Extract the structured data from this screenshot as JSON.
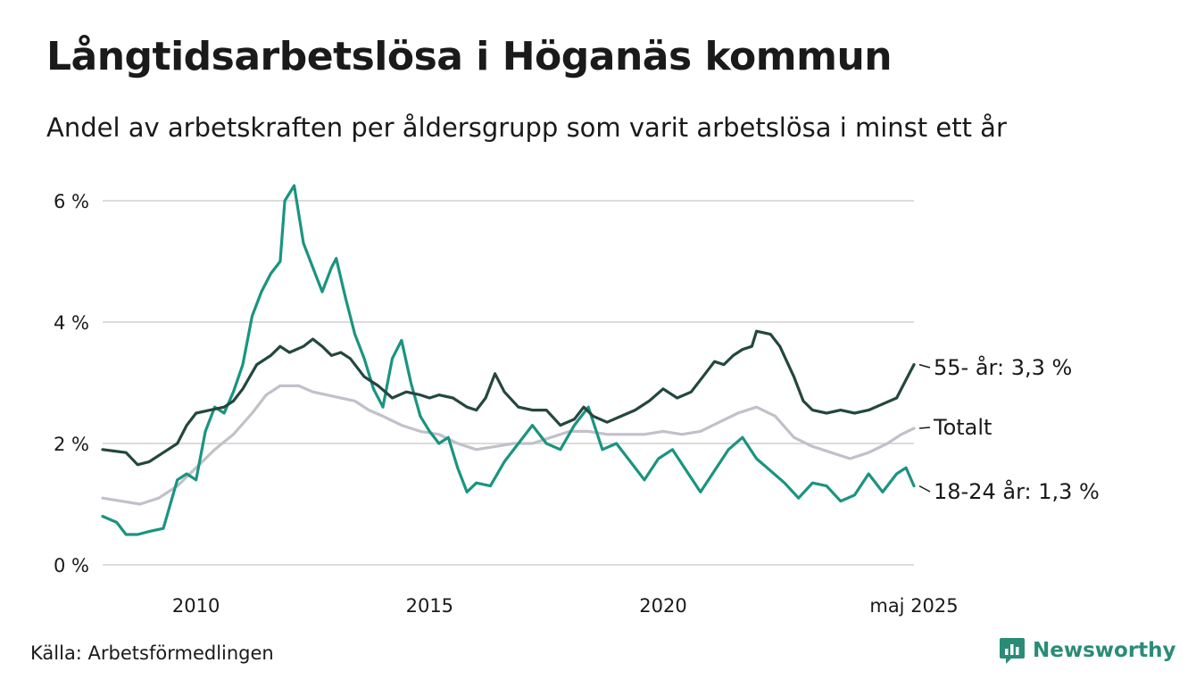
{
  "title": "Långtidsarbetslösa i Höganäs kommun",
  "subtitle": "Andel av arbetskraften per åldersgrupp som varit arbetslösa i minst ett år",
  "source": "Källa: Arbetsförmedlingen",
  "brand": "Newsworthy",
  "colors": {
    "series_55": "#23473f",
    "series_total": "#c2c0c9",
    "series_18_24": "#1a9480",
    "grid": "#dcdcdc",
    "brand": "#2a8c77"
  },
  "chart_data": {
    "type": "line",
    "ylim": [
      0,
      6.4
    ],
    "yticks": [
      0,
      2,
      4,
      6
    ],
    "ytick_labels": [
      "0 %",
      "2 %",
      "4 %",
      "6 %"
    ],
    "xlim": [
      2008.0,
      2025.37
    ],
    "xticks": [
      2010,
      2015,
      2020,
      2025.37
    ],
    "xtick_labels": [
      "2010",
      "2015",
      "2020",
      "maj 2025"
    ],
    "grid": true,
    "end_labels": {
      "s55": "55- år: 3,3 %",
      "total": "Totalt",
      "s1824": "18-24 år: 1,3 %"
    },
    "series": [
      {
        "key": "s55",
        "name": "55- år",
        "points": [
          [
            2008.0,
            1.9
          ],
          [
            2008.5,
            1.85
          ],
          [
            2008.75,
            1.65
          ],
          [
            2009.0,
            1.7
          ],
          [
            2009.3,
            1.85
          ],
          [
            2009.6,
            2.0
          ],
          [
            2009.8,
            2.3
          ],
          [
            2010.0,
            2.5
          ],
          [
            2010.3,
            2.55
          ],
          [
            2010.6,
            2.6
          ],
          [
            2010.8,
            2.7
          ],
          [
            2011.0,
            2.9
          ],
          [
            2011.3,
            3.3
          ],
          [
            2011.6,
            3.45
          ],
          [
            2011.8,
            3.6
          ],
          [
            2012.0,
            3.5
          ],
          [
            2012.3,
            3.6
          ],
          [
            2012.5,
            3.72
          ],
          [
            2012.7,
            3.6
          ],
          [
            2012.9,
            3.45
          ],
          [
            2013.1,
            3.5
          ],
          [
            2013.3,
            3.4
          ],
          [
            2013.6,
            3.1
          ],
          [
            2013.9,
            2.95
          ],
          [
            2014.2,
            2.75
          ],
          [
            2014.5,
            2.85
          ],
          [
            2014.8,
            2.8
          ],
          [
            2015.0,
            2.75
          ],
          [
            2015.2,
            2.8
          ],
          [
            2015.5,
            2.75
          ],
          [
            2015.8,
            2.6
          ],
          [
            2016.0,
            2.55
          ],
          [
            2016.2,
            2.75
          ],
          [
            2016.4,
            3.15
          ],
          [
            2016.6,
            2.85
          ],
          [
            2016.9,
            2.6
          ],
          [
            2017.2,
            2.55
          ],
          [
            2017.5,
            2.55
          ],
          [
            2017.8,
            2.3
          ],
          [
            2018.1,
            2.4
          ],
          [
            2018.3,
            2.6
          ],
          [
            2018.5,
            2.45
          ],
          [
            2018.8,
            2.35
          ],
          [
            2019.1,
            2.45
          ],
          [
            2019.4,
            2.55
          ],
          [
            2019.7,
            2.7
          ],
          [
            2020.0,
            2.9
          ],
          [
            2020.3,
            2.75
          ],
          [
            2020.6,
            2.85
          ],
          [
            2020.9,
            3.15
          ],
          [
            2021.1,
            3.35
          ],
          [
            2021.3,
            3.3
          ],
          [
            2021.5,
            3.45
          ],
          [
            2021.7,
            3.55
          ],
          [
            2021.9,
            3.6
          ],
          [
            2022.0,
            3.85
          ],
          [
            2022.3,
            3.8
          ],
          [
            2022.5,
            3.6
          ],
          [
            2022.8,
            3.1
          ],
          [
            2023.0,
            2.7
          ],
          [
            2023.2,
            2.55
          ],
          [
            2023.5,
            2.5
          ],
          [
            2023.8,
            2.55
          ],
          [
            2024.1,
            2.5
          ],
          [
            2024.4,
            2.55
          ],
          [
            2024.7,
            2.65
          ],
          [
            2025.0,
            2.75
          ],
          [
            2025.2,
            3.05
          ],
          [
            2025.37,
            3.3
          ]
        ]
      },
      {
        "key": "total",
        "name": "Totalt",
        "points": [
          [
            2008.0,
            1.1
          ],
          [
            2008.4,
            1.05
          ],
          [
            2008.8,
            1.0
          ],
          [
            2009.2,
            1.1
          ],
          [
            2009.6,
            1.3
          ],
          [
            2010.0,
            1.6
          ],
          [
            2010.4,
            1.9
          ],
          [
            2010.8,
            2.15
          ],
          [
            2011.2,
            2.5
          ],
          [
            2011.5,
            2.8
          ],
          [
            2011.8,
            2.95
          ],
          [
            2012.2,
            2.95
          ],
          [
            2012.5,
            2.85
          ],
          [
            2012.8,
            2.8
          ],
          [
            2013.1,
            2.75
          ],
          [
            2013.4,
            2.7
          ],
          [
            2013.7,
            2.55
          ],
          [
            2014.0,
            2.45
          ],
          [
            2014.4,
            2.3
          ],
          [
            2014.8,
            2.2
          ],
          [
            2015.2,
            2.15
          ],
          [
            2015.6,
            2.0
          ],
          [
            2016.0,
            1.9
          ],
          [
            2016.4,
            1.95
          ],
          [
            2016.8,
            2.0
          ],
          [
            2017.2,
            2.0
          ],
          [
            2017.6,
            2.1
          ],
          [
            2018.0,
            2.2
          ],
          [
            2018.4,
            2.2
          ],
          [
            2018.8,
            2.15
          ],
          [
            2019.2,
            2.15
          ],
          [
            2019.6,
            2.15
          ],
          [
            2020.0,
            2.2
          ],
          [
            2020.4,
            2.15
          ],
          [
            2020.8,
            2.2
          ],
          [
            2021.2,
            2.35
          ],
          [
            2021.6,
            2.5
          ],
          [
            2022.0,
            2.6
          ],
          [
            2022.4,
            2.45
          ],
          [
            2022.8,
            2.1
          ],
          [
            2023.2,
            1.95
          ],
          [
            2023.6,
            1.85
          ],
          [
            2024.0,
            1.75
          ],
          [
            2024.4,
            1.85
          ],
          [
            2024.8,
            2.0
          ],
          [
            2025.1,
            2.15
          ],
          [
            2025.37,
            2.25
          ]
        ]
      },
      {
        "key": "s1824",
        "name": "18-24 år",
        "points": [
          [
            2008.0,
            0.8
          ],
          [
            2008.3,
            0.7
          ],
          [
            2008.5,
            0.5
          ],
          [
            2008.75,
            0.5
          ],
          [
            2009.0,
            0.55
          ],
          [
            2009.3,
            0.6
          ],
          [
            2009.6,
            1.4
          ],
          [
            2009.8,
            1.5
          ],
          [
            2010.0,
            1.4
          ],
          [
            2010.2,
            2.2
          ],
          [
            2010.4,
            2.6
          ],
          [
            2010.6,
            2.5
          ],
          [
            2010.8,
            2.85
          ],
          [
            2011.0,
            3.3
          ],
          [
            2011.2,
            4.1
          ],
          [
            2011.4,
            4.5
          ],
          [
            2011.6,
            4.8
          ],
          [
            2011.8,
            5.0
          ],
          [
            2011.9,
            6.0
          ],
          [
            2012.1,
            6.25
          ],
          [
            2012.3,
            5.3
          ],
          [
            2012.5,
            4.9
          ],
          [
            2012.7,
            4.5
          ],
          [
            2012.9,
            4.9
          ],
          [
            2013.0,
            5.05
          ],
          [
            2013.2,
            4.4
          ],
          [
            2013.4,
            3.8
          ],
          [
            2013.6,
            3.4
          ],
          [
            2013.8,
            2.9
          ],
          [
            2014.0,
            2.6
          ],
          [
            2014.2,
            3.4
          ],
          [
            2014.4,
            3.7
          ],
          [
            2014.6,
            3.0
          ],
          [
            2014.8,
            2.45
          ],
          [
            2015.0,
            2.2
          ],
          [
            2015.2,
            2.0
          ],
          [
            2015.4,
            2.1
          ],
          [
            2015.6,
            1.6
          ],
          [
            2015.8,
            1.2
          ],
          [
            2016.0,
            1.35
          ],
          [
            2016.3,
            1.3
          ],
          [
            2016.6,
            1.7
          ],
          [
            2016.9,
            2.0
          ],
          [
            2017.2,
            2.3
          ],
          [
            2017.5,
            2.0
          ],
          [
            2017.8,
            1.9
          ],
          [
            2018.1,
            2.3
          ],
          [
            2018.4,
            2.6
          ],
          [
            2018.7,
            1.9
          ],
          [
            2019.0,
            2.0
          ],
          [
            2019.3,
            1.7
          ],
          [
            2019.6,
            1.4
          ],
          [
            2019.9,
            1.75
          ],
          [
            2020.2,
            1.9
          ],
          [
            2020.5,
            1.55
          ],
          [
            2020.8,
            1.2
          ],
          [
            2021.1,
            1.55
          ],
          [
            2021.4,
            1.9
          ],
          [
            2021.7,
            2.1
          ],
          [
            2022.0,
            1.75
          ],
          [
            2022.3,
            1.55
          ],
          [
            2022.6,
            1.35
          ],
          [
            2022.9,
            1.1
          ],
          [
            2023.2,
            1.35
          ],
          [
            2023.5,
            1.3
          ],
          [
            2023.8,
            1.05
          ],
          [
            2024.1,
            1.15
          ],
          [
            2024.4,
            1.5
          ],
          [
            2024.7,
            1.2
          ],
          [
            2025.0,
            1.5
          ],
          [
            2025.2,
            1.6
          ],
          [
            2025.37,
            1.3
          ]
        ]
      }
    ]
  }
}
